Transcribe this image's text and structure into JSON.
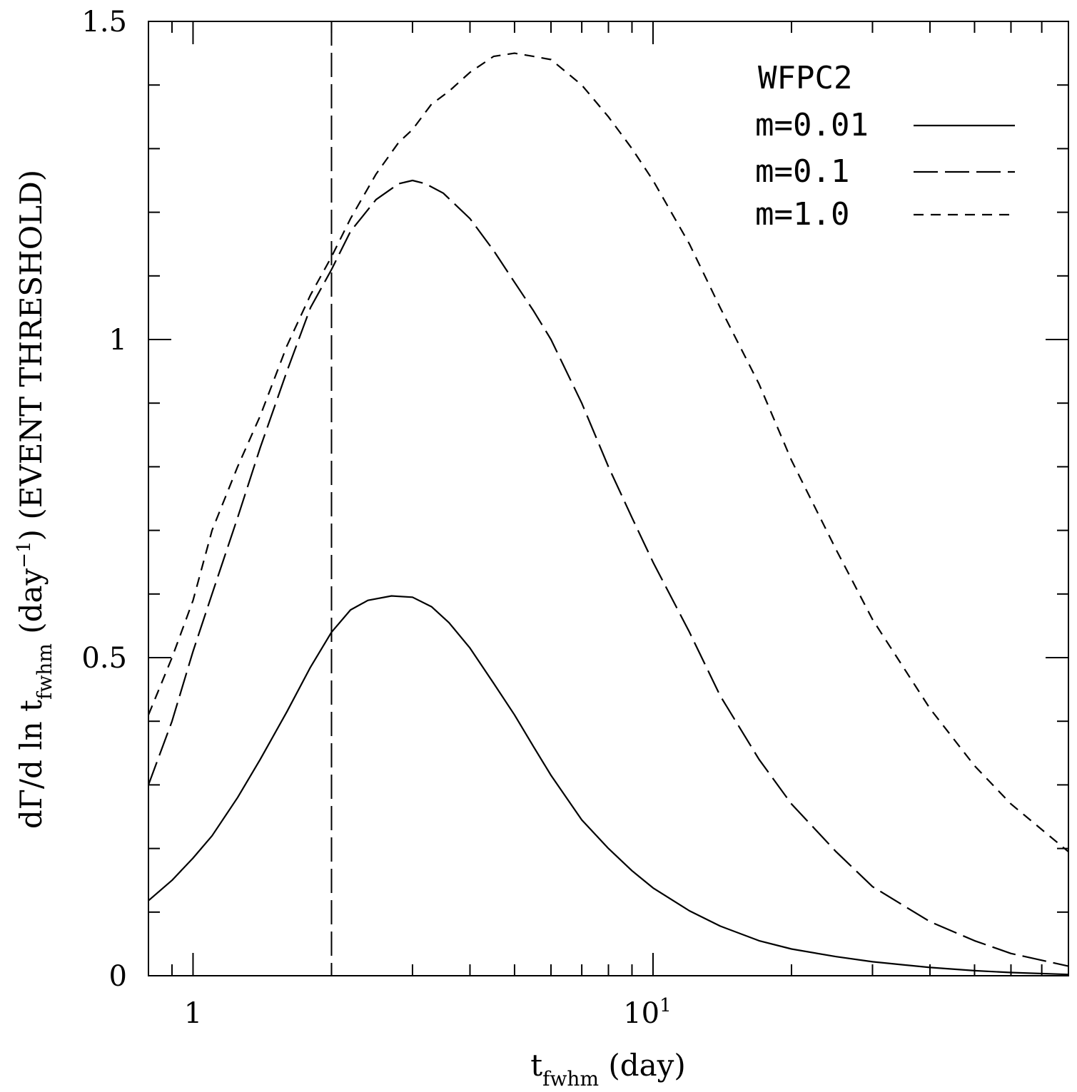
{
  "chart_data": {
    "type": "line",
    "title": "",
    "xlabel": {
      "main": "t",
      "sub": "fwhm",
      "rest": " (day)"
    },
    "ylabel": {
      "pre": "dΓ/d ln t",
      "sub": "fwhm",
      "mid": " (day",
      "sup": "−1",
      "post": ") (EVENT THRESHOLD)"
    },
    "xscale": "log",
    "xlim": [
      0.8,
      80
    ],
    "ylim": [
      0,
      1.5
    ],
    "xticks": [
      {
        "value": 1,
        "label": "1",
        "sup": ""
      },
      {
        "value": 10,
        "label": "10",
        "sup": "1"
      }
    ],
    "yticks": [
      {
        "value": 0,
        "label": "0"
      },
      {
        "value": 0.5,
        "label": "0.5"
      },
      {
        "value": 1,
        "label": "1"
      },
      {
        "value": 1.5,
        "label": "1.5"
      }
    ],
    "threshold_line": {
      "x": 2.0,
      "style": "long-dash"
    },
    "legend_title": "WFPC2",
    "legend_position": "top-right",
    "series": [
      {
        "name": "m=0.01",
        "style": "solid",
        "x": [
          0.8,
          0.9,
          1.0,
          1.1,
          1.25,
          1.4,
          1.6,
          1.8,
          2.0,
          2.2,
          2.4,
          2.7,
          3.0,
          3.3,
          3.6,
          4.0,
          4.5,
          5.0,
          5.5,
          6.0,
          7.0,
          8.0,
          9.0,
          10.0,
          12.0,
          14.0,
          17.0,
          20.0,
          25.0,
          30.0,
          40.0,
          50.0,
          60.0,
          80.0
        ],
        "y": [
          0.118,
          0.15,
          0.185,
          0.22,
          0.28,
          0.34,
          0.415,
          0.485,
          0.54,
          0.575,
          0.59,
          0.597,
          0.595,
          0.58,
          0.555,
          0.515,
          0.46,
          0.41,
          0.36,
          0.315,
          0.245,
          0.2,
          0.165,
          0.138,
          0.102,
          0.078,
          0.055,
          0.042,
          0.03,
          0.022,
          0.013,
          0.008,
          0.005,
          0.002
        ]
      },
      {
        "name": "m=0.1",
        "style": "long-dash",
        "x": [
          0.8,
          0.9,
          1.0,
          1.1,
          1.25,
          1.4,
          1.6,
          1.8,
          2.0,
          2.2,
          2.5,
          2.8,
          3.0,
          3.2,
          3.5,
          4.0,
          4.5,
          5.0,
          5.5,
          6.0,
          7.0,
          8.0,
          9.0,
          10.0,
          12.0,
          14.0,
          17.0,
          20.0,
          25.0,
          30.0,
          40.0,
          50.0,
          60.0,
          80.0
        ],
        "y": [
          0.3,
          0.4,
          0.51,
          0.6,
          0.72,
          0.83,
          0.95,
          1.05,
          1.11,
          1.17,
          1.22,
          1.245,
          1.25,
          1.245,
          1.23,
          1.19,
          1.14,
          1.09,
          1.045,
          1.0,
          0.9,
          0.8,
          0.72,
          0.65,
          0.54,
          0.44,
          0.34,
          0.27,
          0.195,
          0.14,
          0.085,
          0.055,
          0.035,
          0.015
        ]
      },
      {
        "name": "m=1.0",
        "style": "short-dash",
        "x": [
          0.8,
          0.9,
          1.0,
          1.1,
          1.25,
          1.4,
          1.6,
          1.8,
          2.0,
          2.2,
          2.5,
          2.8,
          3.0,
          3.3,
          3.6,
          4.0,
          4.5,
          5.0,
          5.5,
          6.0,
          7.0,
          8.0,
          9.0,
          10.0,
          12.0,
          14.0,
          17.0,
          20.0,
          25.0,
          30.0,
          40.0,
          50.0,
          60.0,
          80.0
        ],
        "y": [
          0.41,
          0.5,
          0.59,
          0.7,
          0.8,
          0.88,
          0.99,
          1.07,
          1.13,
          1.19,
          1.26,
          1.31,
          1.33,
          1.37,
          1.39,
          1.42,
          1.445,
          1.45,
          1.445,
          1.44,
          1.4,
          1.35,
          1.3,
          1.25,
          1.15,
          1.05,
          0.93,
          0.81,
          0.67,
          0.56,
          0.42,
          0.33,
          0.27,
          0.195
        ]
      }
    ]
  }
}
